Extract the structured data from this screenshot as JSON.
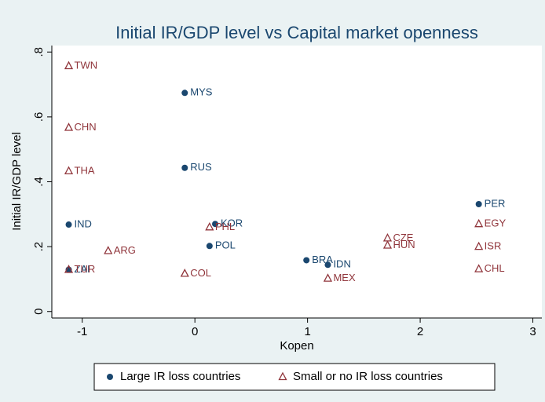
{
  "chart_data": {
    "type": "scatter",
    "title": "Initial IR/GDP level vs Capital market openness",
    "x_label": "Kopen",
    "y_label": "Initial IR/GDP level",
    "xlim": [
      -1.27,
      3.08
    ],
    "ylim": [
      -0.02,
      0.82
    ],
    "xticks": [
      -1,
      0,
      1,
      2,
      3
    ],
    "yticks": [
      {
        "value": 0,
        "label": "0"
      },
      {
        "value": 0.2,
        "label": ".2"
      },
      {
        "value": 0.4,
        "label": ".4"
      },
      {
        "value": 0.6,
        "label": ".6"
      },
      {
        "value": 0.8,
        "label": ".8"
      }
    ],
    "series": [
      {
        "name": "Large IR loss countries",
        "color": "#1a476f",
        "marker": "circle",
        "labels": [
          "MYS",
          "RUS",
          "IND",
          "KOR",
          "POL",
          "BRA",
          "IDN",
          "PER",
          "ZAF"
        ],
        "x": [
          -0.09,
          -0.09,
          -1.12,
          0.18,
          0.13,
          0.99,
          1.18,
          2.52,
          -1.12
        ],
        "y": [
          0.674,
          0.443,
          0.268,
          0.27,
          0.202,
          0.158,
          0.144,
          0.331,
          0.129
        ]
      },
      {
        "name": "Small or no IR loss countries",
        "color": "#90353b",
        "marker": "triangle",
        "labels": [
          "TWN",
          "CHN",
          "THA",
          "ARG",
          "PHL",
          "COL",
          "CZE",
          "HUN",
          "MEX",
          "EGY",
          "ISR",
          "CHL",
          "TUR"
        ],
        "x": [
          -1.12,
          -1.12,
          -1.12,
          -0.77,
          0.13,
          -0.09,
          1.71,
          1.71,
          1.18,
          2.52,
          2.52,
          2.52,
          -1.12
        ],
        "y": [
          0.757,
          0.567,
          0.433,
          0.187,
          0.26,
          0.117,
          0.226,
          0.204,
          0.102,
          0.27,
          0.2,
          0.131,
          0.129
        ]
      }
    ]
  }
}
